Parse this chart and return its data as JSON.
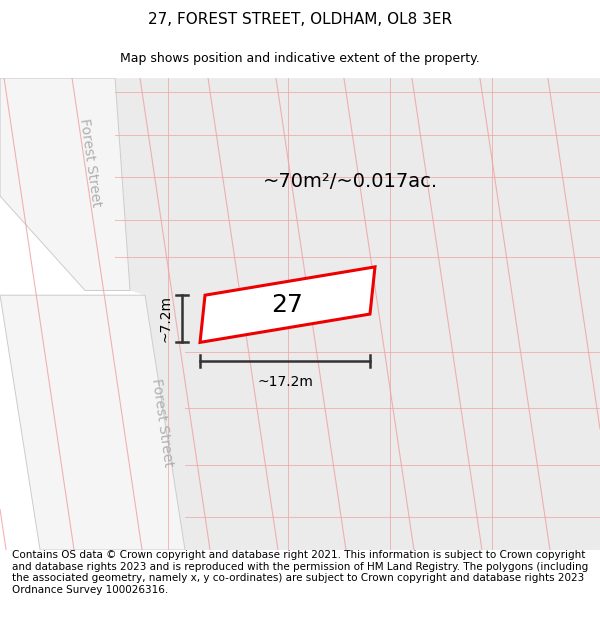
{
  "title": "27, FOREST STREET, OLDHAM, OL8 3ER",
  "subtitle": "Map shows position and indicative extent of the property.",
  "footer": "Contains OS data © Crown copyright and database right 2021. This information is subject to Crown copyright and database rights 2023 and is reproduced with the permission of HM Land Registry. The polygons (including the associated geometry, namely x, y co-ordinates) are subject to Crown copyright and database rights 2023 Ordnance Survey 100026316.",
  "property_label": "27",
  "area_text": "~70m²/~0.017ac.",
  "width_label": "~17.2m",
  "height_label": "~7.2m",
  "street_label": "Forest Street",
  "title_fontsize": 11,
  "subtitle_fontsize": 9,
  "footer_fontsize": 7.5,
  "map_bg": "#e8e8e8",
  "plot_bg": "#ebebeb",
  "road_fill": "#f5f5f5",
  "road_edge": "#cccccc",
  "grid_line": "#f0a0a0",
  "prop_fill": "#ffffff",
  "prop_edge": "#ee0000",
  "dim_color": "#333333",
  "street_color": "#b0b0b0"
}
